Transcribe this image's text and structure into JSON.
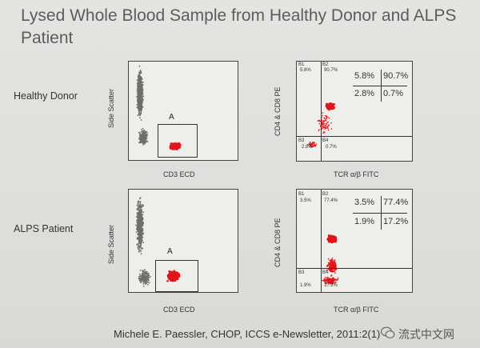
{
  "title": "Lysed Whole Blood Sample from Healthy Donor and ALPS Patient",
  "rows": [
    {
      "label": "Healthy Donor",
      "scatter": {
        "ylabel": "Side Scatter",
        "xlabel": "CD3 ECD",
        "gate": "A"
      },
      "quad": {
        "ylabel": "CD4 & CD8 PE",
        "xlabel": "TCR α/β FITC",
        "tags": [
          "B1",
          "B2",
          "B3",
          "B4"
        ],
        "tag_values": [
          "5.8%",
          "90.7%",
          "2.8%",
          "0.7%"
        ],
        "pct": {
          "tl": "5.8%",
          "tr": "90.7%",
          "bl": "2.8%",
          "br": "0.7%"
        }
      }
    },
    {
      "label": "ALPS Patient",
      "scatter": {
        "ylabel": "Side Scatter",
        "xlabel": "CD3 ECD",
        "gate": "A"
      },
      "quad": {
        "ylabel": "CD4 & CD8 PE",
        "xlabel": "TCR α/β FITC",
        "tags": [
          "B1",
          "B2",
          "B3",
          "B4"
        ],
        "tag_values": [
          "3.5%",
          "77.4%",
          "1.9%",
          "17.2%"
        ],
        "pct": {
          "tl": "3.5%",
          "tr": "77.4%",
          "bl": "1.9%",
          "br": "17.2%"
        }
      }
    }
  ],
  "citation": "Michele E. Paessler, CHOP, ICCS e-Newsletter, 2011:2(1)",
  "watermark": "流式中文网",
  "colors": {
    "gate_events": "#e0161b",
    "background_events": "#6e6e6e",
    "axis": "#333333"
  }
}
